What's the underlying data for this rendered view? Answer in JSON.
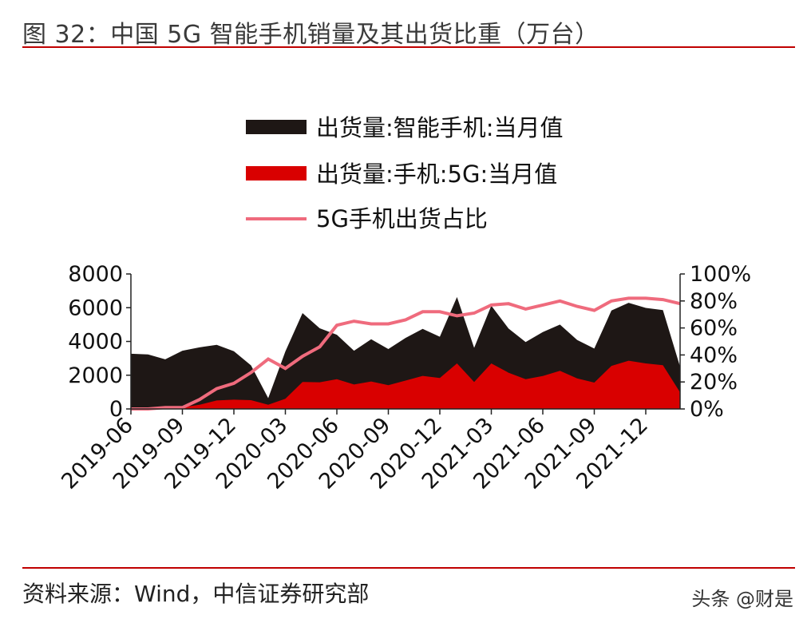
{
  "header": {
    "title": "图 32：中国 5G 智能手机销量及其出货比重（万台）"
  },
  "footer": {
    "source": "资料来源：Wind，中信证券研究部",
    "watermark": "头条 @财是"
  },
  "colors": {
    "total": "#1e1715",
    "fiveg": "#d90000",
    "share": "#ef6b7d",
    "rule": "#c00000"
  },
  "chart_data": {
    "type": "area",
    "title": "中国 5G 智能手机销量及其出货比重（万台）",
    "x": [
      "2019-06",
      "2019-07",
      "2019-08",
      "2019-09",
      "2019-10",
      "2019-11",
      "2019-12",
      "2020-01",
      "2020-02",
      "2020-03",
      "2020-04",
      "2020-05",
      "2020-06",
      "2020-07",
      "2020-08",
      "2020-09",
      "2020-10",
      "2020-11",
      "2020-12",
      "2021-01",
      "2021-02",
      "2021-03",
      "2021-04",
      "2021-05",
      "2021-06",
      "2021-07",
      "2021-08",
      "2021-09",
      "2021-10",
      "2021-11",
      "2021-12",
      "2022-01",
      "2022-02"
    ],
    "x_tick_labels": [
      "2019-06",
      "2019-09",
      "2019-12",
      "2020-03",
      "2020-06",
      "2020-09",
      "2020-12",
      "2021-03",
      "2021-06",
      "2021-09",
      "2021-12"
    ],
    "series": [
      {
        "name": "出货量:智能手机:当月值",
        "type": "area",
        "axis": "left",
        "values": [
          3270,
          3230,
          2940,
          3450,
          3650,
          3800,
          3420,
          2580,
          640,
          3410,
          5680,
          4780,
          4400,
          3450,
          4130,
          3550,
          4210,
          4750,
          4280,
          6630,
          3620,
          6120,
          4770,
          3960,
          4560,
          5000,
          4090,
          3580,
          5830,
          6290,
          5990,
          5860,
          2500
        ]
      },
      {
        "name": "出货量:手机:5G:当月值",
        "type": "area",
        "axis": "left",
        "values": [
          0,
          0,
          60,
          100,
          250,
          500,
          550,
          520,
          250,
          600,
          1600,
          1580,
          1760,
          1450,
          1630,
          1410,
          1680,
          1960,
          1830,
          2700,
          1600,
          2700,
          2150,
          1760,
          1950,
          2260,
          1810,
          1560,
          2550,
          2860,
          2700,
          2590,
          980
        ]
      },
      {
        "name": "5G手机出货占比",
        "type": "line",
        "axis": "right",
        "values": [
          0,
          0,
          1,
          1,
          7,
          15,
          19,
          27,
          37,
          30,
          39,
          46,
          62,
          65,
          63,
          63,
          66,
          72,
          72,
          69,
          71,
          77,
          78,
          74,
          77,
          80,
          76,
          73,
          80,
          82,
          82,
          81,
          78
        ]
      }
    ],
    "y_left": {
      "ticks": [
        0,
        2000,
        4000,
        6000,
        8000
      ],
      "ylim": [
        0,
        8000
      ]
    },
    "y_right": {
      "ticks": [
        "0%",
        "20%",
        "40%",
        "60%",
        "80%",
        "100%"
      ],
      "ylim": [
        0,
        100
      ]
    },
    "legend_position": "top-center",
    "legend": [
      "出货量:智能手机:当月值",
      "出货量:手机:5G:当月值",
      "5G手机出货占比"
    ]
  }
}
